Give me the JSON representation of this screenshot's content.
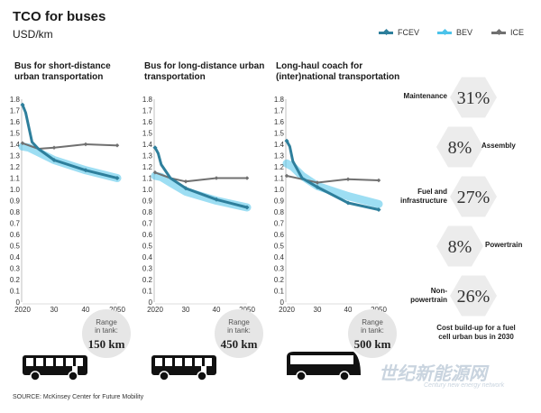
{
  "title": "TCO for buses",
  "subtitle": "USD/km",
  "legend": [
    {
      "name": "FCEV",
      "color": "#2e7f9c"
    },
    {
      "name": "BEV",
      "color": "#4cc3ea"
    },
    {
      "name": "ICE",
      "color": "#707070"
    }
  ],
  "chart_data": [
    {
      "type": "line",
      "title": "Bus for short-distance urban transportation",
      "x": [
        2020,
        2021,
        2022,
        2023,
        2025,
        2030,
        2040,
        2050
      ],
      "ylim": [
        0,
        1.8
      ],
      "yticks": [
        "0",
        "0.1",
        "0.2",
        "0.3",
        "0.4",
        "0.5",
        "0.6",
        "0.7",
        "0.8",
        "0.9",
        "1.0",
        "1.1",
        "1.2",
        "1.3",
        "1.4",
        "1.5",
        "1.6",
        "1.7",
        "1.8"
      ],
      "xticks": [
        "2020",
        "30",
        "40",
        "2050"
      ],
      "series": [
        {
          "name": "FCEV",
          "x": [
            2020,
            2021,
            2022,
            2023,
            2025,
            2030,
            2040,
            2050
          ],
          "values": [
            1.75,
            1.68,
            1.55,
            1.42,
            1.36,
            1.26,
            1.17,
            1.1
          ]
        },
        {
          "name": "BEV",
          "x": [
            2020,
            2022,
            2025,
            2030,
            2040,
            2050
          ],
          "values": [
            1.38,
            1.37,
            1.33,
            1.26,
            1.17,
            1.1
          ]
        },
        {
          "name": "ICE",
          "x": [
            2020,
            2025,
            2030,
            2040,
            2050
          ],
          "values": [
            1.41,
            1.36,
            1.37,
            1.4,
            1.39
          ]
        }
      ],
      "range_label": "Range\nin tank:",
      "range_km": "150 km"
    },
    {
      "type": "line",
      "title": "Bus for long-distance urban transportation",
      "x": [
        2020,
        2021,
        2022,
        2025,
        2030,
        2040,
        2050
      ],
      "ylim": [
        0,
        1.8
      ],
      "yticks": [
        "0",
        "0.1",
        "0.2",
        "0.3",
        "0.4",
        "0.5",
        "0.6",
        "0.7",
        "0.8",
        "0.9",
        "1.0",
        "1.1",
        "1.2",
        "1.3",
        "1.4",
        "1.5",
        "1.6",
        "1.7",
        "1.8"
      ],
      "xticks": [
        "2020",
        "30",
        "40",
        "2050"
      ],
      "series": [
        {
          "name": "FCEV",
          "x": [
            2020,
            2021,
            2022,
            2025,
            2030,
            2040,
            2050
          ],
          "values": [
            1.37,
            1.32,
            1.22,
            1.1,
            1.01,
            0.91,
            0.84
          ]
        },
        {
          "name": "BEV",
          "x": [
            2020,
            2022,
            2025,
            2030,
            2040,
            2050
          ],
          "values": [
            1.12,
            1.11,
            1.06,
            0.98,
            0.9,
            0.84
          ]
        },
        {
          "name": "ICE",
          "x": [
            2020,
            2025,
            2030,
            2040,
            2050
          ],
          "values": [
            1.15,
            1.1,
            1.07,
            1.1,
            1.1
          ]
        }
      ],
      "range_label": "Range\nin tank:",
      "range_km": "450 km"
    },
    {
      "type": "line",
      "title": "Long-haul coach for (inter)national transportation",
      "x": [
        2020,
        2021,
        2022,
        2025,
        2030,
        2040,
        2050
      ],
      "ylim": [
        0,
        1.8
      ],
      "yticks": [
        "0",
        "0.1",
        "0.2",
        "0.3",
        "0.4",
        "0.5",
        "0.6",
        "0.7",
        "0.8",
        "0.9",
        "1.0",
        "1.1",
        "1.2",
        "1.3",
        "1.4",
        "1.5",
        "1.6",
        "1.7",
        "1.8"
      ],
      "xticks": [
        "2020",
        "30",
        "40",
        "2050"
      ],
      "series": [
        {
          "name": "FCEV",
          "x": [
            2020,
            2021,
            2022,
            2025,
            2030,
            2040,
            2050
          ],
          "values": [
            1.43,
            1.38,
            1.25,
            1.1,
            1.02,
            0.88,
            0.82
          ]
        },
        {
          "name": "BEV",
          "x": [
            2020,
            2022,
            2025,
            2030,
            2040,
            2050
          ],
          "values": [
            1.23,
            1.2,
            1.12,
            1.03,
            0.94,
            0.87
          ]
        },
        {
          "name": "ICE",
          "x": [
            2020,
            2025,
            2030,
            2040,
            2050
          ],
          "values": [
            1.12,
            1.09,
            1.06,
            1.09,
            1.08
          ]
        }
      ],
      "range_label": "Range\nin tank:",
      "range_km": "500 km"
    }
  ],
  "cost_buildup": {
    "items": [
      {
        "label": "Maintenance",
        "value": "31%"
      },
      {
        "label": "Assembly",
        "value": "8%"
      },
      {
        "label": "Fuel and\ninfrastructure",
        "value": "27%"
      },
      {
        "label": "Powertrain",
        "value": "8%"
      },
      {
        "label": "Non-\npowertrain",
        "value": "26%"
      }
    ],
    "caption": "Cost build-up for a fuel cell urban bus in 2030"
  },
  "source": "SOURCE: McKinsey Center for Future Mobility",
  "watermark": "世纪新能源网",
  "watermark_sub": "Century new energy network"
}
